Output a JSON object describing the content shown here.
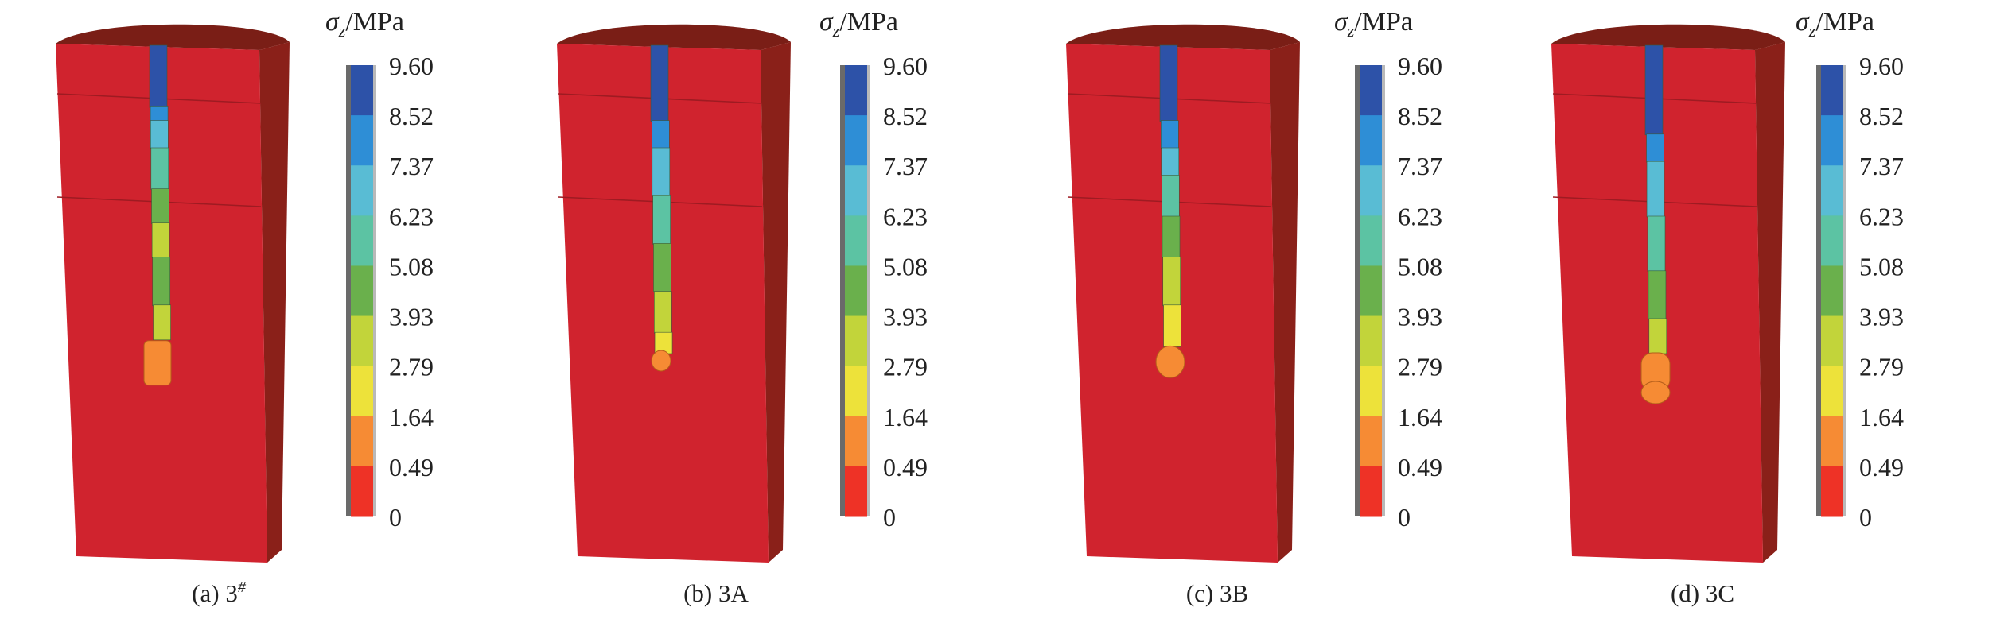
{
  "legend": {
    "quantity": "σ",
    "subscript": "z",
    "unit": "/MPa",
    "ticks": [
      "9.60",
      "8.52",
      "7.37",
      "6.23",
      "5.08",
      "3.93",
      "2.79",
      "1.64",
      "0.49",
      "0"
    ],
    "colors": [
      "#2d52a8",
      "#2e8ed6",
      "#59bcd4",
      "#5cc3a3",
      "#6ab04c",
      "#c2d43a",
      "#ede23a",
      "#f68b34",
      "#ee3226"
    ]
  },
  "model_colors": {
    "body_face": "#d0232e",
    "body_side": "#8a2019",
    "body_top": "#7a1e16",
    "seam": "#9e1b22"
  },
  "panels": [
    {
      "caption": "(a) 3",
      "caption_sup": "#",
      "stem": [
        {
          "from": 0.0,
          "to": 0.18,
          "color": "#2d52a8"
        },
        {
          "from": 0.18,
          "to": 0.22,
          "color": "#2e8ed6"
        },
        {
          "from": 0.22,
          "to": 0.3,
          "color": "#59bcd4"
        },
        {
          "from": 0.3,
          "to": 0.42,
          "color": "#5cc3a3"
        },
        {
          "from": 0.42,
          "to": 0.52,
          "color": "#6ab04c"
        },
        {
          "from": 0.52,
          "to": 0.62,
          "color": "#c2d43a"
        },
        {
          "from": 0.62,
          "to": 0.76,
          "color": "#6ab04c"
        },
        {
          "from": 0.76,
          "to": 0.86,
          "color": "#c2d43a"
        }
      ],
      "tip": {
        "color": "#f68b34",
        "shape": "block"
      }
    },
    {
      "caption": "(b) 3A",
      "caption_sup": "",
      "stem": [
        {
          "from": 0.0,
          "to": 0.22,
          "color": "#2d52a8"
        },
        {
          "from": 0.22,
          "to": 0.3,
          "color": "#2e8ed6"
        },
        {
          "from": 0.3,
          "to": 0.44,
          "color": "#59bcd4"
        },
        {
          "from": 0.44,
          "to": 0.58,
          "color": "#5cc3a3"
        },
        {
          "from": 0.58,
          "to": 0.72,
          "color": "#6ab04c"
        },
        {
          "from": 0.72,
          "to": 0.84,
          "color": "#c2d43a"
        },
        {
          "from": 0.84,
          "to": 0.9,
          "color": "#ede23a"
        }
      ],
      "tip": {
        "color": "#f68b34",
        "shape": "small"
      }
    },
    {
      "caption": "(c) 3B",
      "caption_sup": "",
      "stem": [
        {
          "from": 0.0,
          "to": 0.22,
          "color": "#2d52a8"
        },
        {
          "from": 0.22,
          "to": 0.3,
          "color": "#2e8ed6"
        },
        {
          "from": 0.3,
          "to": 0.38,
          "color": "#59bcd4"
        },
        {
          "from": 0.38,
          "to": 0.5,
          "color": "#5cc3a3"
        },
        {
          "from": 0.5,
          "to": 0.62,
          "color": "#6ab04c"
        },
        {
          "from": 0.62,
          "to": 0.76,
          "color": "#c2d43a"
        },
        {
          "from": 0.76,
          "to": 0.88,
          "color": "#ede23a"
        }
      ],
      "tip": {
        "color": "#f68b34",
        "shape": "round"
      }
    },
    {
      "caption": "(d) 3C",
      "caption_sup": "",
      "stem": [
        {
          "from": 0.0,
          "to": 0.26,
          "color": "#2d52a8"
        },
        {
          "from": 0.26,
          "to": 0.34,
          "color": "#2e8ed6"
        },
        {
          "from": 0.34,
          "to": 0.5,
          "color": "#59bcd4"
        },
        {
          "from": 0.5,
          "to": 0.66,
          "color": "#5cc3a3"
        },
        {
          "from": 0.66,
          "to": 0.8,
          "color": "#6ab04c"
        },
        {
          "from": 0.8,
          "to": 0.9,
          "color": "#c2d43a"
        }
      ],
      "tip": {
        "color": "#f68b34",
        "shape": "large"
      }
    }
  ]
}
